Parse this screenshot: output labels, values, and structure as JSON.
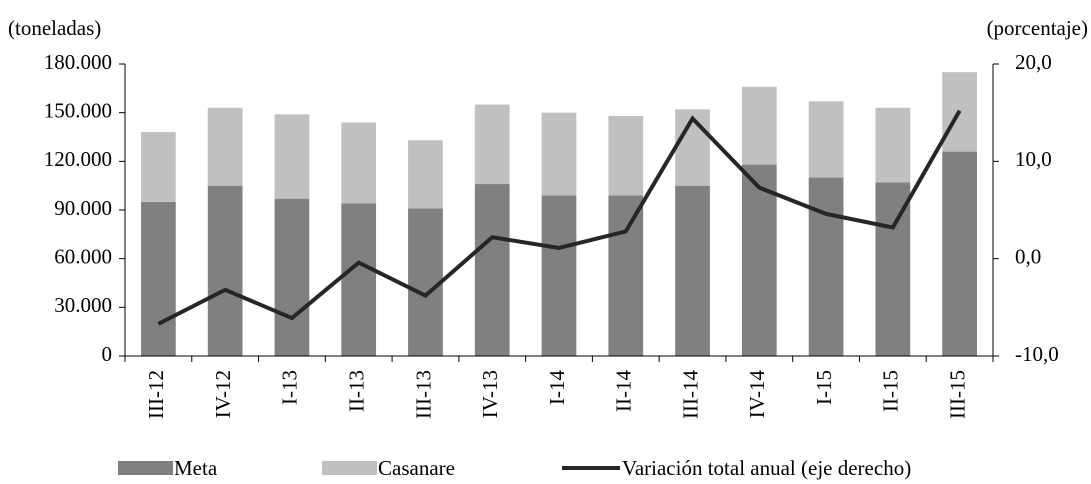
{
  "chart_data": {
    "type": "bar-line",
    "y_label": "(toneladas)",
    "y2_label": "(porcentaje)",
    "categories": [
      "III-12",
      "IV-12",
      "I-13",
      "II-13",
      "III-13",
      "IV-13",
      "I-14",
      "II-14",
      "III-14",
      "IV-14",
      "I-15",
      "II-15",
      "III-15"
    ],
    "series": [
      {
        "name": "Meta",
        "color": "#808080",
        "type": "bar",
        "values": [
          95000,
          105000,
          97000,
          94000,
          91000,
          106000,
          99000,
          99000,
          105000,
          118000,
          110000,
          107000,
          126000
        ]
      },
      {
        "name": "Casanare",
        "color": "#c0c0c0",
        "type": "bar",
        "values": [
          43000,
          48000,
          52000,
          50000,
          42000,
          49000,
          51000,
          49000,
          47000,
          48000,
          47000,
          46000,
          49000
        ]
      },
      {
        "name": "Variación total anual (eje derecho)",
        "color": "#262626",
        "type": "line",
        "axis": "y2",
        "values": [
          -6.7,
          -3.2,
          -6.1,
          -0.4,
          -3.8,
          2.2,
          1.1,
          2.8,
          14.4,
          7.3,
          4.6,
          3.2,
          15.2
        ]
      }
    ],
    "ylim": [
      0,
      180000
    ],
    "yticks": [
      0,
      {
        "value": 30000,
        "label": "30.000"
      },
      {
        "value": 60000,
        "label": "60.000"
      },
      {
        "value": 90000,
        "label": "90.000"
      },
      {
        "value": 120000,
        "label": "120.000"
      },
      {
        "value": 150000,
        "label": "150.000"
      },
      {
        "value": 180000,
        "label": "180.000"
      }
    ],
    "y2lim": [
      -10,
      20
    ],
    "y2ticks": [
      {
        "value": -10,
        "label": "-10,0"
      },
      {
        "value": 0,
        "label": "0,0"
      },
      {
        "value": 10,
        "label": "10,0"
      },
      {
        "value": 20,
        "label": "20,0"
      }
    ]
  }
}
